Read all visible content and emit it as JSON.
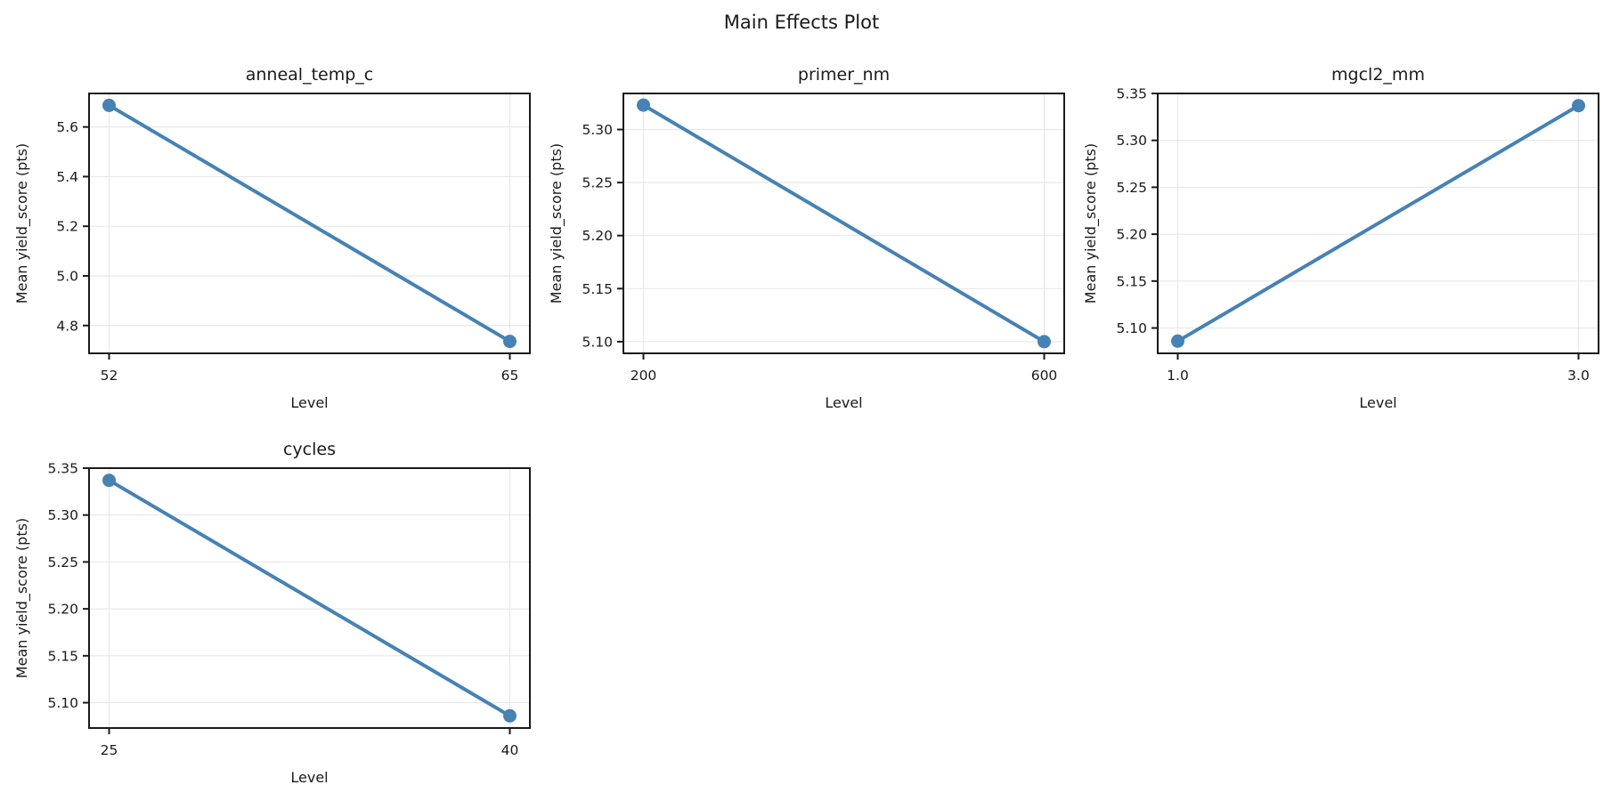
{
  "figure": {
    "title": "Main Effects Plot"
  },
  "style": {
    "line_color": "#4682B4",
    "grid_color": "#e8e8e8",
    "spine_color": "#1a1a1a",
    "text_color": "#1a1a1a",
    "background_color": "#ffffff"
  },
  "chart_data": [
    {
      "type": "line",
      "title": "anneal_temp_c",
      "xlabel": "Level",
      "ylabel": "Mean yield_score (pts)",
      "x": [
        52,
        65
      ],
      "x_tick_labels": [
        "52",
        "65"
      ],
      "values": [
        5.687,
        4.736
      ],
      "yticks": [
        4.8,
        5.0,
        5.2,
        5.4,
        5.6
      ],
      "ytick_labels": [
        "4.8",
        "5.0",
        "5.2",
        "5.4",
        "5.6"
      ],
      "ylim": [
        4.688,
        5.735
      ],
      "grid": true,
      "legend": "none",
      "marker": "circle"
    },
    {
      "type": "line",
      "title": "primer_nm",
      "xlabel": "Level",
      "ylabel": "Mean yield_score (pts)",
      "x": [
        200,
        600
      ],
      "x_tick_labels": [
        "200",
        "600"
      ],
      "values": [
        5.323,
        5.1
      ],
      "yticks": [
        5.1,
        5.15,
        5.2,
        5.25,
        5.3
      ],
      "ytick_labels": [
        "5.10",
        "5.15",
        "5.20",
        "5.25",
        "5.30"
      ],
      "ylim": [
        5.089,
        5.334
      ],
      "grid": true,
      "legend": "none",
      "marker": "circle"
    },
    {
      "type": "line",
      "title": "mgcl2_mm",
      "xlabel": "Level",
      "ylabel": "Mean yield_score (pts)",
      "x": [
        1.0,
        3.0
      ],
      "x_tick_labels": [
        "1.0",
        "3.0"
      ],
      "values": [
        5.086,
        5.337
      ],
      "yticks": [
        5.1,
        5.15,
        5.2,
        5.25,
        5.3,
        5.35
      ],
      "ytick_labels": [
        "5.10",
        "5.15",
        "5.20",
        "5.25",
        "5.30",
        "5.35"
      ],
      "ylim": [
        5.073,
        5.35
      ],
      "grid": true,
      "legend": "none",
      "marker": "circle"
    },
    {
      "type": "line",
      "title": "cycles",
      "xlabel": "Level",
      "ylabel": "Mean yield_score (pts)",
      "x": [
        25,
        40
      ],
      "x_tick_labels": [
        "25",
        "40"
      ],
      "values": [
        5.337,
        5.086
      ],
      "yticks": [
        5.1,
        5.15,
        5.2,
        5.25,
        5.3,
        5.35
      ],
      "ytick_labels": [
        "5.10",
        "5.15",
        "5.20",
        "5.25",
        "5.30",
        "5.35"
      ],
      "ylim": [
        5.073,
        5.35
      ],
      "grid": true,
      "legend": "none",
      "marker": "circle"
    }
  ]
}
